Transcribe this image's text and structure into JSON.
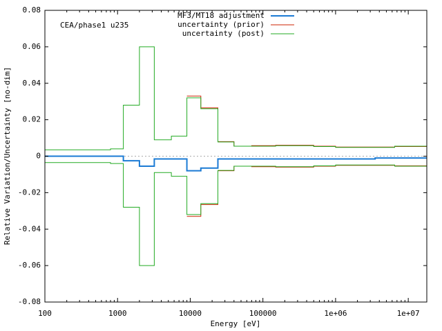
{
  "chart_data": {
    "type": "line",
    "title": "",
    "annotation": "CEA/phase1 u235",
    "xlabel": "Energy [eV]",
    "ylabel": "Relative Variation/Uncertainty [no-dim]",
    "xscale": "log",
    "xlim": [
      100,
      18000000
    ],
    "ylim": [
      -0.08,
      0.08
    ],
    "grid": false,
    "legend_position": "top-right",
    "xticks": [
      {
        "value": 100,
        "label": "100"
      },
      {
        "value": 1000,
        "label": "1000"
      },
      {
        "value": 10000,
        "label": "10000"
      },
      {
        "value": 100000,
        "label": "100000"
      },
      {
        "value": 1000000,
        "label": "1e+06"
      },
      {
        "value": 10000000,
        "label": "1e+07"
      }
    ],
    "yticks": [
      {
        "value": -0.08,
        "label": "-0.08"
      },
      {
        "value": -0.06,
        "label": "-0.06"
      },
      {
        "value": -0.04,
        "label": "-0.04"
      },
      {
        "value": -0.02,
        "label": "-0.02"
      },
      {
        "value": 0,
        "label": "0"
      },
      {
        "value": 0.02,
        "label": "0.02"
      },
      {
        "value": 0.04,
        "label": "0.04"
      },
      {
        "value": 0.06,
        "label": "0.06"
      },
      {
        "value": 0.08,
        "label": "0.08"
      }
    ],
    "zero_line": {
      "y": 0,
      "color": "#aaaaaa"
    },
    "series": [
      {
        "name": "MF3/MT18 adjustment",
        "color": "#1a7ad4",
        "style": "steps",
        "symmetric": false,
        "bin_edges": [
          100,
          1200,
          2000,
          3200,
          9000,
          14000,
          24000,
          40000,
          3500000,
          18000000
        ],
        "values": [
          0.0,
          -0.0025,
          -0.0055,
          -0.0015,
          -0.008,
          -0.0065,
          -0.0015,
          -0.0015,
          -0.001
        ]
      },
      {
        "name": "uncertainty (prior)",
        "color": "#cc2200",
        "style": "steps",
        "symmetric": true,
        "bin_edges": [
          9000,
          14000,
          24000,
          40000,
          70000,
          150000,
          500000,
          1000000,
          3500000,
          6500000,
          18000000
        ],
        "values": [
          0.033,
          0.0265,
          0.008,
          0.0055,
          0.0058,
          0.006,
          0.0055,
          0.005,
          0.005,
          0.0053
        ]
      },
      {
        "name": "uncertainty (post)",
        "color": "#22aa22",
        "style": "steps",
        "symmetric": true,
        "bin_edges": [
          100,
          800,
          1200,
          2000,
          3200,
          5500,
          9000,
          14000,
          24000,
          40000,
          70000,
          150000,
          500000,
          1000000,
          3500000,
          6500000,
          18000000
        ],
        "values": [
          0.0035,
          0.004,
          0.028,
          0.06,
          0.009,
          0.011,
          0.032,
          0.026,
          0.0078,
          0.0055,
          0.0055,
          0.0058,
          0.0053,
          0.0048,
          0.0048,
          0.0055
        ]
      }
    ]
  }
}
